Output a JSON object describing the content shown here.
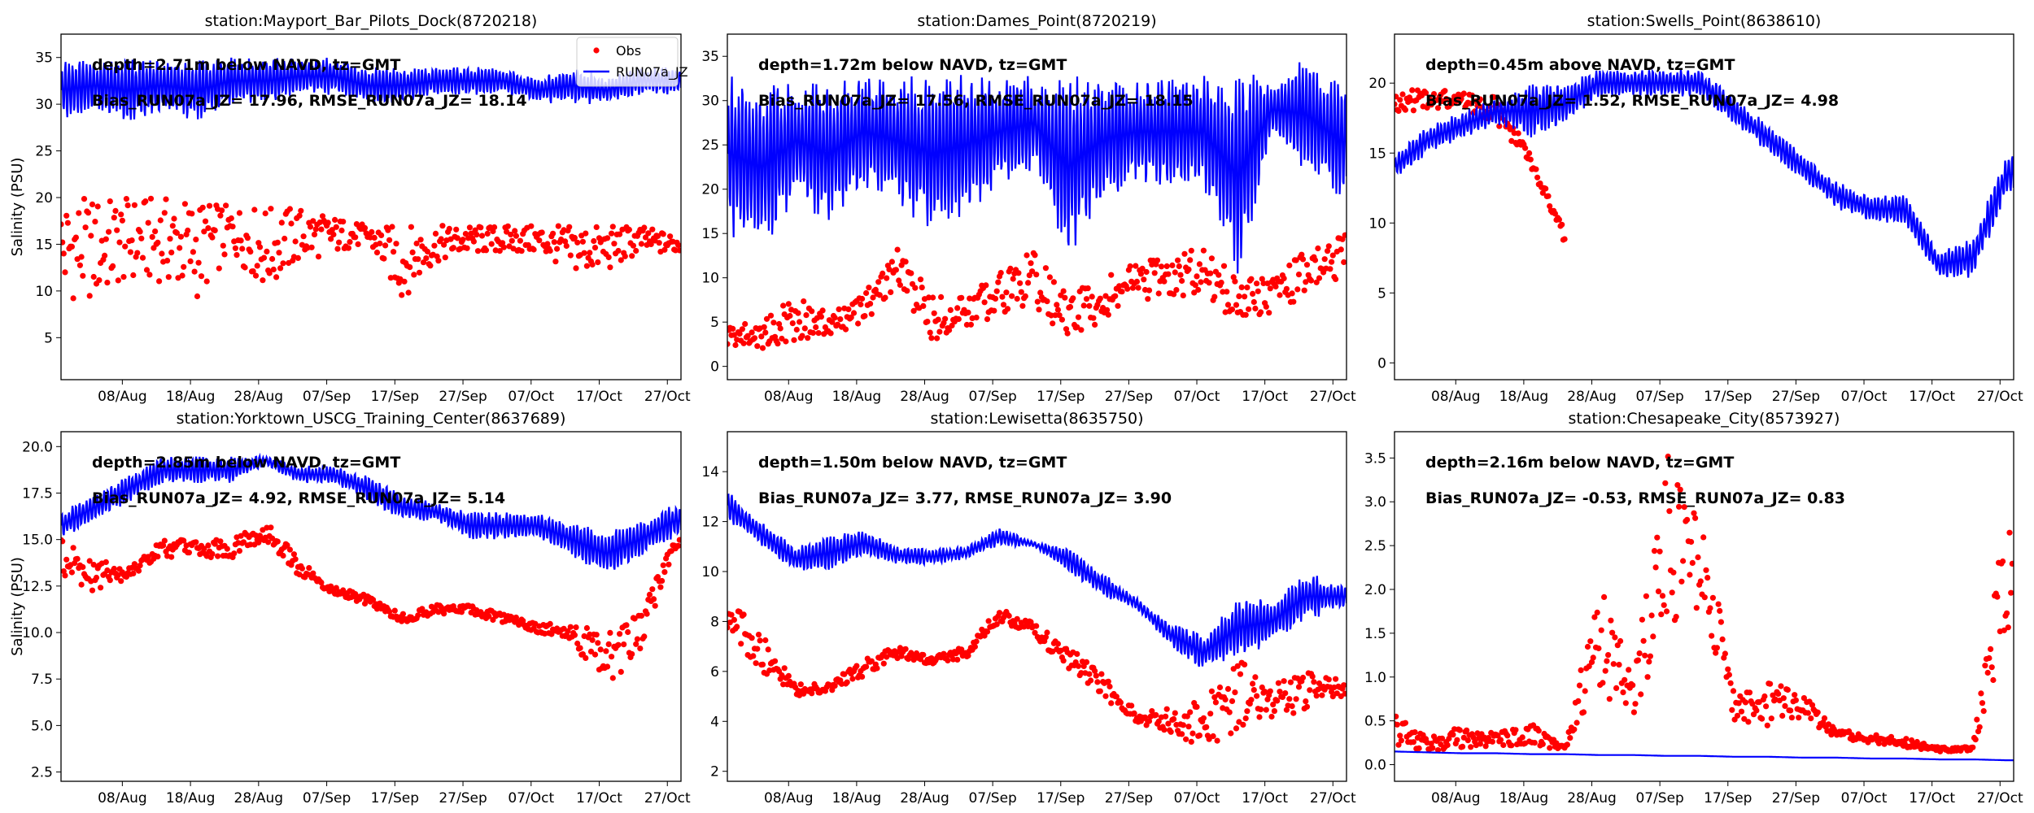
{
  "chart_data": [
    {
      "type": "line",
      "title": "station:Mayport_Bar_Pilots_Dock(8720218)",
      "ylabel": "Salinity (PSU)",
      "annotations": [
        "depth=2.71m below NAVD, tz=GMT",
        "Bias_RUN07a_JZ= 17.96, RMSE_RUN07a_JZ= 18.14"
      ],
      "ylim": [
        0.5,
        37.5
      ],
      "yticks": [
        "5",
        "10",
        "15",
        "20",
        "25",
        "30",
        "35"
      ],
      "legend": "top-right",
      "series": [
        {
          "name": "Obs",
          "kind": "scatter",
          "color": "#ff0000",
          "low": [
            9,
            9,
            11,
            11,
            9,
            14,
            10,
            13,
            14,
            15,
            9,
            13,
            14,
            14,
            14,
            12,
            12,
            14,
            14
          ],
          "high": [
            20,
            20,
            20,
            20,
            20,
            19,
            19,
            19,
            18,
            17,
            17,
            17,
            17,
            17,
            17,
            17,
            17,
            17,
            16
          ]
        },
        {
          "name": "RUN07a_JZ",
          "kind": "line",
          "color": "#0000ff",
          "low": [
            28,
            29,
            28,
            29,
            28,
            30,
            30,
            31,
            31,
            30,
            30,
            31,
            31,
            31,
            30,
            30,
            30,
            31,
            31
          ],
          "high": [
            35,
            35,
            35,
            35,
            35,
            35,
            35,
            35,
            35,
            34,
            34,
            34,
            34,
            34,
            33,
            34,
            33,
            34,
            34
          ]
        }
      ]
    },
    {
      "type": "line",
      "title": "station:Dames_Point(8720219)",
      "ylabel": "",
      "annotations": [
        "depth=1.72m below NAVD, tz=GMT",
        "Bias_RUN07a_JZ= 17.56, RMSE_RUN07a_JZ= 18.15"
      ],
      "ylim": [
        -1.5,
        37.5
      ],
      "yticks": [
        "0",
        "5",
        "10",
        "15",
        "20",
        "25",
        "30",
        "35"
      ],
      "legend": "",
      "series": [
        {
          "name": "Obs",
          "kind": "scatter",
          "color": "#ff0000",
          "low": [
            2,
            2,
            3,
            3,
            5,
            8,
            3,
            4,
            6,
            7,
            3,
            5,
            7,
            8,
            8,
            5,
            6,
            8,
            10
          ],
          "high": [
            5,
            5,
            8,
            6,
            8,
            14,
            8,
            8,
            11,
            13,
            8,
            10,
            12,
            12,
            14,
            10,
            10,
            13,
            15
          ]
        },
        {
          "name": "RUN07a_JZ",
          "kind": "line",
          "color": "#0000ff",
          "low": [
            15,
            12,
            18,
            15,
            20,
            18,
            15,
            17,
            20,
            22,
            12,
            18,
            20,
            20,
            20,
            10,
            25,
            22,
            18
          ],
          "high": [
            33,
            33,
            33,
            33,
            33,
            33,
            33,
            33,
            33,
            33,
            33,
            33,
            33,
            33,
            33,
            33,
            33,
            35,
            33
          ]
        }
      ]
    },
    {
      "type": "line",
      "title": "station:Swells_Point(8638610)",
      "ylabel": "",
      "annotations": [
        "depth=0.45m above NAVD, tz=GMT",
        "Bias_RUN07a_JZ=  1.52, RMSE_RUN07a_JZ=  4.98"
      ],
      "ylim": [
        -1.2,
        23.5
      ],
      "yticks": [
        "0",
        "5",
        "10",
        "15",
        "20"
      ],
      "legend": "",
      "series": [
        {
          "name": "Obs",
          "kind": "scatter",
          "color": "#ff0000",
          "low": [
            18,
            18,
            18,
            17,
            14,
            8.5,
            null,
            null,
            null,
            null,
            null,
            null,
            null,
            null,
            null,
            null,
            null,
            null,
            null
          ],
          "high": [
            19.5,
            19.5,
            19.5,
            19,
            15,
            9.5,
            null,
            null,
            null,
            null,
            null,
            null,
            null,
            null,
            null,
            null,
            null,
            null,
            null
          ]
        },
        {
          "name": "RUN07a_JZ",
          "kind": "line",
          "color": "#0000ff",
          "low": [
            13,
            15,
            16,
            17,
            16,
            17,
            19,
            19,
            19,
            19,
            17,
            15,
            13,
            11,
            10,
            10,
            6,
            6,
            12
          ],
          "high": [
            15,
            17,
            18,
            19,
            20,
            20,
            21,
            21,
            21,
            21,
            19,
            17,
            15,
            13,
            12,
            12,
            8,
            9,
            15
          ]
        }
      ]
    },
    {
      "type": "line",
      "title": "station:Yorktown_USCG_Training_Center(8637689)",
      "ylabel": "Salinity (PSU)",
      "annotations": [
        "depth=2.85m below NAVD, tz=GMT",
        "Bias_RUN07a_JZ=  4.92, RMSE_RUN07a_JZ=  5.14"
      ],
      "ylim": [
        2.0,
        20.8
      ],
      "yticks": [
        "2.5",
        "5.0",
        "7.5",
        "10.0",
        "12.5",
        "15.0",
        "17.5",
        "20.0"
      ],
      "legend": "",
      "series": [
        {
          "name": "Obs",
          "kind": "scatter",
          "color": "#ff0000",
          "low": [
            13,
            12,
            13,
            14,
            14,
            14,
            15,
            13,
            12,
            11.5,
            10.5,
            11,
            11,
            10.5,
            10,
            9.5,
            7,
            9,
            14.5
          ],
          "high": [
            15,
            14,
            13.5,
            15,
            15,
            15,
            16,
            14,
            12.5,
            12,
            11,
            11.5,
            11.5,
            11,
            10.5,
            10.5,
            10,
            11,
            15
          ]
        },
        {
          "name": "RUN07a_JZ",
          "kind": "line",
          "color": "#0000ff",
          "low": [
            15,
            16,
            17,
            18,
            18,
            18,
            19,
            18,
            18,
            17,
            16,
            16,
            15,
            15,
            15,
            14,
            13,
            14,
            15
          ],
          "high": [
            16.5,
            17.5,
            18.5,
            19.5,
            19.5,
            19.5,
            19.5,
            19,
            19,
            18.5,
            17.5,
            17,
            16.5,
            16.5,
            16.5,
            16,
            15.5,
            16,
            17
          ]
        }
      ]
    },
    {
      "type": "line",
      "title": "station:Lewisetta(8635750)",
      "ylabel": "",
      "annotations": [
        "depth=1.50m below NAVD, tz=GMT",
        "Bias_RUN07a_JZ=  3.77, RMSE_RUN07a_JZ=  3.90"
      ],
      "ylim": [
        1.6,
        15.6
      ],
      "yticks": [
        "2",
        "4",
        "6",
        "8",
        "10",
        "12",
        "14"
      ],
      "legend": "",
      "series": [
        {
          "name": "Obs",
          "kind": "scatter",
          "color": "#ff0000",
          "low": [
            7.5,
            6,
            5,
            5.2,
            5.8,
            6.5,
            6.3,
            6.5,
            8,
            7.5,
            6,
            5,
            4,
            3.5,
            2.5,
            3.5,
            4,
            4.5,
            5
          ],
          "high": [
            9,
            7.5,
            5.5,
            5.5,
            6.5,
            7,
            6.6,
            7,
            8.5,
            8,
            7,
            6,
            4.5,
            4.5,
            5,
            6.5,
            5.5,
            6,
            6
          ]
        },
        {
          "name": "RUN07a_JZ",
          "kind": "line",
          "color": "#0000ff",
          "low": [
            12,
            11,
            10,
            10,
            10.5,
            10.3,
            10.2,
            10.5,
            11,
            11,
            10,
            9,
            8.5,
            7,
            6,
            6.5,
            7,
            8,
            8.5
          ],
          "high": [
            13.3,
            12,
            11,
            11.5,
            11.8,
            11,
            11,
            11,
            11.8,
            11.2,
            11,
            10,
            9,
            8,
            7.5,
            9,
            9,
            10,
            9.5
          ]
        }
      ]
    },
    {
      "type": "line",
      "title": "station:Chesapeake_City(8573927)",
      "ylabel": "",
      "annotations": [
        "depth=2.16m below NAVD, tz=GMT",
        "Bias_RUN07a_JZ= -0.53, RMSE_RUN07a_JZ=  0.83"
      ],
      "ylim": [
        -0.19,
        3.8
      ],
      "yticks": [
        "0.0",
        "0.5",
        "1.0",
        "1.5",
        "2.0",
        "2.5",
        "3.0",
        "3.5"
      ],
      "legend": "",
      "series": [
        {
          "name": "Obs",
          "kind": "scatter",
          "color": "#ff0000",
          "low": [
            0.2,
            0.15,
            0.2,
            0.2,
            0.2,
            0.17,
            0.8,
            0.5,
            1.5,
            1.8,
            0.5,
            0.4,
            0.5,
            0.3,
            0.25,
            0.2,
            0.15,
            0.15,
            1.5
          ],
          "high": [
            0.6,
            0.3,
            0.45,
            0.35,
            0.5,
            0.2,
            2.2,
            1.0,
            3.6,
            3.0,
            0.8,
            1.0,
            0.8,
            0.4,
            0.35,
            0.3,
            0.2,
            0.2,
            3.0
          ]
        },
        {
          "name": "RUN07a_JZ",
          "kind": "line",
          "color": "#0000ff",
          "low": [
            0.15,
            0.14,
            0.13,
            0.13,
            0.12,
            0.12,
            0.11,
            0.11,
            0.1,
            0.1,
            0.09,
            0.09,
            0.08,
            0.08,
            0.07,
            0.07,
            0.06,
            0.06,
            0.05
          ],
          "high": [
            0.15,
            0.14,
            0.13,
            0.13,
            0.12,
            0.12,
            0.11,
            0.11,
            0.1,
            0.1,
            0.09,
            0.09,
            0.08,
            0.08,
            0.07,
            0.07,
            0.06,
            0.06,
            0.05
          ]
        }
      ]
    }
  ],
  "shared": {
    "dates": [
      "30/Jul",
      "04/Aug",
      "09/Aug",
      "14/Aug",
      "19/Aug",
      "24/Aug",
      "29/Aug",
      "03/Sep",
      "08/Sep",
      "13/Sep",
      "18/Sep",
      "23/Sep",
      "28/Sep",
      "03/Oct",
      "08/Oct",
      "13/Oct",
      "18/Oct",
      "23/Oct",
      "28/Oct"
    ],
    "xlim": [
      "30/Jul",
      "29/Oct"
    ],
    "xticks": [
      "08/Aug",
      "18/Aug",
      "28/Aug",
      "07/Sep",
      "17/Sep",
      "27/Sep",
      "07/Oct",
      "17/Oct",
      "27/Oct"
    ]
  }
}
